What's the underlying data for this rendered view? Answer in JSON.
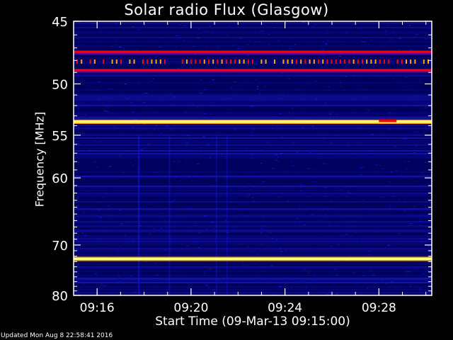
{
  "chart_data": {
    "type": "heatmap",
    "title": "Solar radio Flux (Glasgow)",
    "xlabel": "Start Time (09-Mar-13 09:15:00)",
    "ylabel": "Frequency [MHz]",
    "x_start": "09:15:00",
    "x_end": "09:30:15",
    "x_ticks": [
      "09:16",
      "09:20",
      "09:24",
      "09:28"
    ],
    "y_ticks": [
      "45",
      "50",
      "55",
      "60",
      "70",
      "80"
    ],
    "y_scale": "reciprocal",
    "ylim": [
      45,
      80
    ],
    "bands": [
      {
        "freq_mhz": 47.3,
        "intensity": "medium",
        "appearance": "red line"
      },
      {
        "freq_mhz": 48.1,
        "intensity": "pulsed",
        "appearance": "periodic orange dots"
      },
      {
        "freq_mhz": 48.8,
        "intensity": "medium",
        "appearance": "red line"
      },
      {
        "freq_mhz": 53.6,
        "intensity": "high",
        "appearance": "yellow-white line"
      },
      {
        "freq_mhz": 72.5,
        "intensity": "high",
        "appearance": "yellow-white line"
      }
    ],
    "background": "dark blue noise",
    "colormap": [
      "#00005a",
      "#1a1aff",
      "#ff0000",
      "#ffa500",
      "#ffff80"
    ]
  },
  "footer": "Updated Mon Aug  8 22:58:41 2016"
}
